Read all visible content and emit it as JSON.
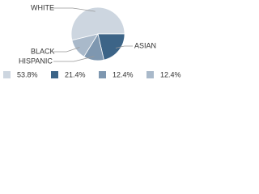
{
  "chart_data": {
    "type": "pie",
    "categories": [
      "WHITE",
      "ASIAN",
      "HISPANIC",
      "BLACK"
    ],
    "values": [
      53.8,
      21.4,
      12.4,
      12.4
    ],
    "value_labels": [
      "53.8%",
      "21.4%",
      "12.4%",
      "12.4%"
    ],
    "colors": [
      "#cdd6e0",
      "#3c6487",
      "#7e97b0",
      "#a9b9ca"
    ]
  }
}
